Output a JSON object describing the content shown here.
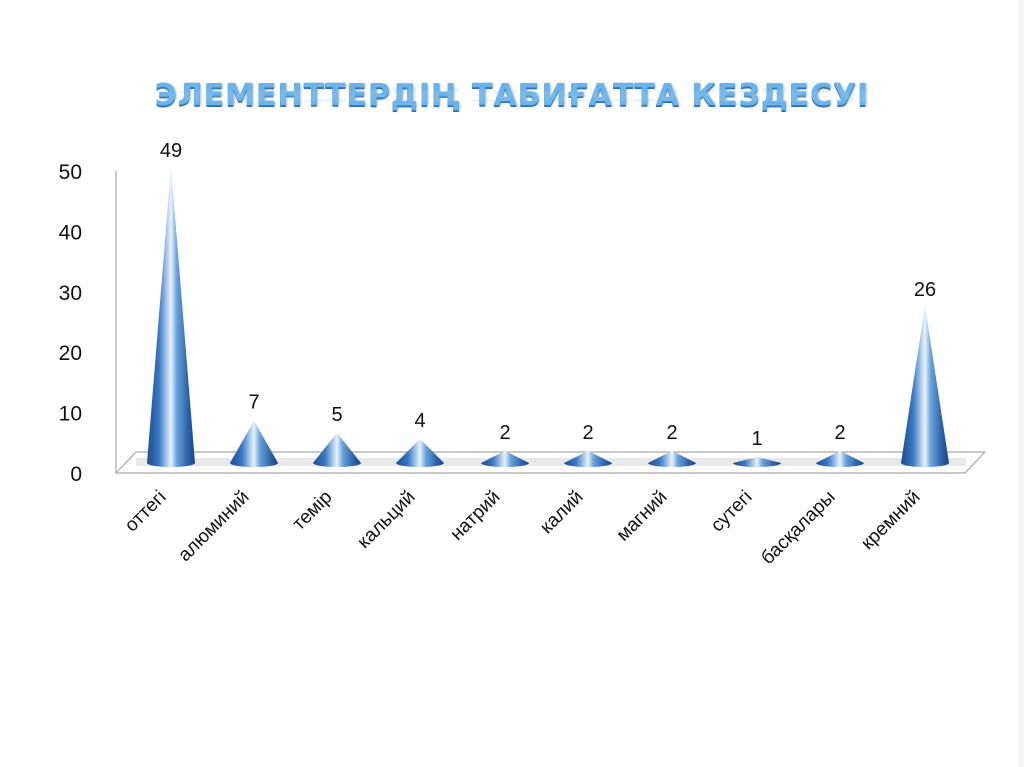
{
  "slide": {
    "title": "ЭЛЕМЕНТТЕРДІҢ ТАБИҒАТТА КЕЗДЕСУІ"
  },
  "chart_data": {
    "type": "bar",
    "subtype": "3d-cone",
    "title": "ЭЛЕМЕНТТЕРДІҢ ТАБИҒАТТА КЕЗДЕСУІ",
    "xlabel": "",
    "ylabel": "",
    "categories": [
      "оттегі",
      "алюминий",
      "темір",
      "кальций",
      "натрий",
      "калий",
      "магний",
      "сутегі",
      "басқалары",
      "кремний"
    ],
    "values": [
      49,
      7,
      5,
      4,
      2,
      2,
      2,
      1,
      2,
      26
    ],
    "data_labels": [
      "49",
      "7",
      "5",
      "4",
      "2",
      "2",
      "2",
      "1",
      "2",
      "26"
    ],
    "yticks": [
      "0",
      "10",
      "20",
      "30",
      "40",
      "50"
    ],
    "ylim": [
      0,
      50
    ],
    "grid": false,
    "legend": null,
    "series_color": "#2e64a8"
  }
}
